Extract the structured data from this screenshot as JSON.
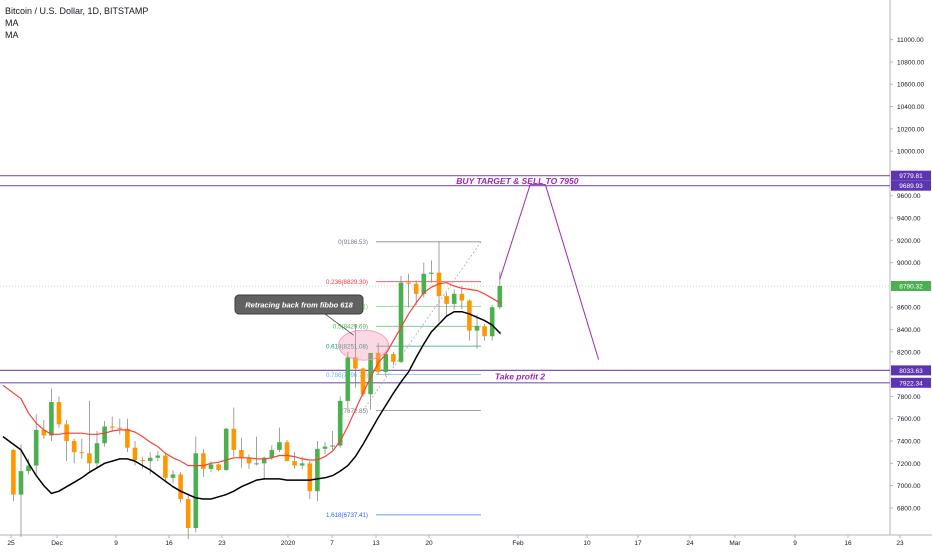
{
  "header": {
    "symbol": "Bitcoin / U.S. Dollar, 1D, BITSTAMP",
    "indicators": [
      "MA",
      "MA"
    ]
  },
  "colors": {
    "up": "#4caf50",
    "down": "#ff9800",
    "ma_fast": "#f44336",
    "ma_slow": "#000000",
    "hline": "#7e57c2",
    "projection": "#9c27b0",
    "annotation_text": "#9c27b0",
    "price_tag": "#5e35b1",
    "last_price_tag": "#4caf50"
  },
  "chart_data": {
    "type": "candlestick",
    "title": "Bitcoin / U.S. Dollar, 1D, BITSTAMP",
    "x_tick_labels": [
      "25",
      "Dec",
      "9",
      "16",
      "23",
      "2020",
      "7",
      "13",
      "20",
      "Feb",
      "10",
      "17",
      "24",
      "Mar",
      "9",
      "16",
      "23"
    ],
    "y_tick_labels": [
      "11000.00",
      "10800.00",
      "10600.00",
      "10400.00",
      "10200.00",
      "10000.00",
      "9600.00",
      "9400.00",
      "9200.00",
      "9000.00",
      "8600.00",
      "8400.00",
      "8200.00",
      "7800.00",
      "7600.00",
      "7400.00",
      "7200.00",
      "7000.00",
      "6800.00"
    ],
    "ylim": [
      6620,
      11070
    ],
    "grid": false,
    "legend": "top-left",
    "candles": [
      {
        "date": "2019-11-24",
        "o": 7320,
        "h": 7330,
        "l": 6860,
        "c": 6920
      },
      {
        "date": "2019-11-25",
        "o": 6920,
        "h": 7370,
        "l": 6540,
        "c": 7130
      },
      {
        "date": "2019-11-26",
        "o": 7130,
        "h": 7240,
        "l": 7100,
        "c": 7180
      },
      {
        "date": "2019-11-27",
        "o": 7180,
        "h": 7640,
        "l": 7090,
        "c": 7500
      },
      {
        "date": "2019-11-28",
        "o": 7500,
        "h": 7590,
        "l": 7420,
        "c": 7450
      },
      {
        "date": "2019-11-29",
        "o": 7450,
        "h": 7870,
        "l": 7400,
        "c": 7750
      },
      {
        "date": "2019-11-30",
        "o": 7750,
        "h": 7800,
        "l": 7520,
        "c": 7550
      },
      {
        "date": "2019-12-01",
        "o": 7550,
        "h": 7590,
        "l": 7220,
        "c": 7400
      },
      {
        "date": "2019-12-02",
        "o": 7400,
        "h": 7420,
        "l": 7200,
        "c": 7300
      },
      {
        "date": "2019-12-03",
        "o": 7300,
        "h": 7420,
        "l": 7240,
        "c": 7290
      },
      {
        "date": "2019-12-04",
        "o": 7290,
        "h": 7760,
        "l": 7130,
        "c": 7200
      },
      {
        "date": "2019-12-05",
        "o": 7200,
        "h": 7490,
        "l": 7160,
        "c": 7380
      },
      {
        "date": "2019-12-06",
        "o": 7380,
        "h": 7580,
        "l": 7350,
        "c": 7530
      },
      {
        "date": "2019-12-07",
        "o": 7530,
        "h": 7620,
        "l": 7490,
        "c": 7520
      },
      {
        "date": "2019-12-08",
        "o": 7520,
        "h": 7600,
        "l": 7460,
        "c": 7510
      },
      {
        "date": "2019-12-09",
        "o": 7510,
        "h": 7600,
        "l": 7300,
        "c": 7340
      },
      {
        "date": "2019-12-10",
        "o": 7340,
        "h": 7400,
        "l": 7180,
        "c": 7230
      },
      {
        "date": "2019-12-11",
        "o": 7230,
        "h": 7260,
        "l": 7150,
        "c": 7220
      },
      {
        "date": "2019-12-12",
        "o": 7220,
        "h": 7300,
        "l": 7100,
        "c": 7250
      },
      {
        "date": "2019-12-13",
        "o": 7250,
        "h": 7310,
        "l": 7220,
        "c": 7270
      },
      {
        "date": "2019-12-14",
        "o": 7270,
        "h": 7290,
        "l": 7030,
        "c": 7070
      },
      {
        "date": "2019-12-15",
        "o": 7070,
        "h": 7140,
        "l": 7020,
        "c": 7100
      },
      {
        "date": "2019-12-16",
        "o": 7100,
        "h": 7120,
        "l": 6850,
        "c": 6880
      },
      {
        "date": "2019-12-17",
        "o": 6880,
        "h": 6930,
        "l": 6520,
        "c": 6620
      },
      {
        "date": "2019-12-18",
        "o": 6620,
        "h": 7440,
        "l": 6580,
        "c": 7290
      },
      {
        "date": "2019-12-19",
        "o": 7290,
        "h": 7330,
        "l": 7080,
        "c": 7150
      },
      {
        "date": "2019-12-20",
        "o": 7150,
        "h": 7220,
        "l": 7120,
        "c": 7190
      },
      {
        "date": "2019-12-21",
        "o": 7190,
        "h": 7200,
        "l": 7130,
        "c": 7140
      },
      {
        "date": "2019-12-22",
        "o": 7140,
        "h": 7520,
        "l": 7130,
        "c": 7510
      },
      {
        "date": "2019-12-23",
        "o": 7510,
        "h": 7700,
        "l": 7260,
        "c": 7320
      },
      {
        "date": "2019-12-24",
        "o": 7320,
        "h": 7430,
        "l": 7160,
        "c": 7250
      },
      {
        "date": "2019-12-25",
        "o": 7250,
        "h": 7280,
        "l": 7150,
        "c": 7200
      },
      {
        "date": "2019-12-26",
        "o": 7200,
        "h": 7440,
        "l": 7180,
        "c": 7200
      },
      {
        "date": "2019-12-27",
        "o": 7200,
        "h": 7260,
        "l": 7050,
        "c": 7250
      },
      {
        "date": "2019-12-28",
        "o": 7250,
        "h": 7360,
        "l": 7230,
        "c": 7320
      },
      {
        "date": "2019-12-29",
        "o": 7320,
        "h": 7520,
        "l": 7300,
        "c": 7390
      },
      {
        "date": "2019-12-30",
        "o": 7390,
        "h": 7410,
        "l": 7250,
        "c": 7220
      },
      {
        "date": "2019-12-31",
        "o": 7220,
        "h": 7300,
        "l": 7150,
        "c": 7180
      },
      {
        "date": "2020-01-01",
        "o": 7180,
        "h": 7260,
        "l": 7150,
        "c": 7200
      },
      {
        "date": "2020-01-02",
        "o": 7200,
        "h": 7220,
        "l": 6880,
        "c": 6950
      },
      {
        "date": "2020-01-03",
        "o": 6950,
        "h": 7400,
        "l": 6860,
        "c": 7330
      },
      {
        "date": "2020-01-04",
        "o": 7330,
        "h": 7390,
        "l": 7280,
        "c": 7350
      },
      {
        "date": "2020-01-05",
        "o": 7350,
        "h": 7490,
        "l": 7320,
        "c": 7360
      },
      {
        "date": "2020-01-06",
        "o": 7360,
        "h": 7800,
        "l": 7340,
        "c": 7760
      },
      {
        "date": "2020-01-07",
        "o": 7760,
        "h": 8200,
        "l": 7690,
        "c": 8150
      },
      {
        "date": "2020-01-08",
        "o": 8150,
        "h": 8450,
        "l": 7880,
        "c": 8050
      },
      {
        "date": "2020-01-09",
        "o": 8050,
        "h": 8060,
        "l": 7800,
        "c": 7820
      },
      {
        "date": "2020-01-10",
        "o": 7820,
        "h": 8180,
        "l": 7680,
        "c": 8190
      },
      {
        "date": "2020-01-11",
        "o": 8190,
        "h": 8280,
        "l": 8000,
        "c": 8020
      },
      {
        "date": "2020-01-12",
        "o": 8020,
        "h": 8200,
        "l": 7980,
        "c": 8180
      },
      {
        "date": "2020-01-13",
        "o": 8180,
        "h": 8200,
        "l": 8080,
        "c": 8110
      },
      {
        "date": "2020-01-14",
        "o": 8110,
        "h": 8880,
        "l": 8100,
        "c": 8820
      },
      {
        "date": "2020-01-15",
        "o": 8820,
        "h": 8900,
        "l": 8600,
        "c": 8810
      },
      {
        "date": "2020-01-16",
        "o": 8810,
        "h": 8840,
        "l": 8620,
        "c": 8720
      },
      {
        "date": "2020-01-17",
        "o": 8720,
        "h": 9000,
        "l": 8690,
        "c": 8900
      },
      {
        "date": "2020-01-18",
        "o": 8900,
        "h": 9020,
        "l": 8820,
        "c": 8910
      },
      {
        "date": "2020-01-19",
        "o": 8910,
        "h": 9190,
        "l": 8470,
        "c": 8700
      },
      {
        "date": "2020-01-20",
        "o": 8700,
        "h": 8730,
        "l": 8520,
        "c": 8630
      },
      {
        "date": "2020-01-21",
        "o": 8630,
        "h": 8760,
        "l": 8580,
        "c": 8720
      },
      {
        "date": "2020-01-22",
        "o": 8720,
        "h": 8790,
        "l": 8580,
        "c": 8660
      },
      {
        "date": "2020-01-23",
        "o": 8660,
        "h": 8670,
        "l": 8300,
        "c": 8390
      },
      {
        "date": "2020-01-24",
        "o": 8390,
        "h": 8530,
        "l": 8230,
        "c": 8430
      },
      {
        "date": "2020-01-25",
        "o": 8430,
        "h": 8450,
        "l": 8300,
        "c": 8340
      },
      {
        "date": "2020-01-26",
        "o": 8340,
        "h": 8620,
        "l": 8300,
        "c": 8600
      },
      {
        "date": "2020-01-27",
        "o": 8600,
        "h": 8920,
        "l": 8580,
        "c": 8790
      }
    ],
    "ma_fast_values": [
      7900,
      7780,
      7650,
      7560,
      7500,
      7460,
      7460,
      7470,
      7470,
      7470,
      7460,
      7460,
      7470,
      7490,
      7500,
      7500,
      7480,
      7440,
      7390,
      7350,
      7290,
      7250,
      7220,
      7180,
      7180,
      7180,
      7200,
      7210,
      7230,
      7250,
      7250,
      7250,
      7240,
      7240,
      7250,
      7270,
      7270,
      7260,
      7240,
      7230,
      7230,
      7260,
      7310,
      7400,
      7530,
      7680,
      7830,
      7970,
      8100,
      8180,
      8300,
      8420,
      8540,
      8640,
      8730,
      8780,
      8810,
      8820,
      8790,
      8770,
      8760,
      8750,
      8720,
      8680,
      8640,
      8650
    ],
    "ma_slow_values": [
      7440,
      7320,
      7200,
      7090,
      7000,
      6930,
      6950,
      6990,
      7030,
      7070,
      7120,
      7160,
      7200,
      7220,
      7240,
      7240,
      7220,
      7180,
      7140,
      7090,
      7040,
      6990,
      6950,
      6920,
      6890,
      6880,
      6880,
      6900,
      6920,
      6950,
      6990,
      7020,
      7050,
      7060,
      7060,
      7060,
      7050,
      7050,
      7050,
      7050,
      7060,
      7070,
      7090,
      7130,
      7180,
      7260,
      7370,
      7490,
      7610,
      7720,
      7830,
      7930,
      8020,
      8150,
      8270,
      8380,
      8450,
      8520,
      8560,
      8560,
      8540,
      8510,
      8480,
      8440,
      8370,
      8380
    ],
    "fibonacci": [
      {
        "label": "0(9186.53)",
        "value": 9186.53
      },
      {
        "label": "0.236(8829.30)",
        "value": 8829.3
      },
      {
        "label": "0.382(8608.31)",
        "value": 8608.31
      },
      {
        "label": "0.5(8429.69)",
        "value": 8429.69
      },
      {
        "label": "0.618(8251.08)",
        "value": 8251.08
      },
      {
        "label": "0.786(7996.76)",
        "value": 7996.76
      },
      {
        "label": "1(7672.85)",
        "value": 7672.85
      },
      {
        "label": "1.618(6737.41)",
        "value": 6737.41
      }
    ],
    "horizontal_levels": [
      {
        "price": 9779.81,
        "label": "9779.81"
      },
      {
        "price": 9689.93,
        "label": "9689.93"
      },
      {
        "price": 8033.63,
        "label": "8033.63"
      },
      {
        "price": 7922.34,
        "label": "7922.34"
      }
    ],
    "last_price": {
      "price": 8790.32,
      "label": "8790.32"
    },
    "projection": [
      {
        "date": "2020-01-27",
        "price": 8850
      },
      {
        "date": "2020-01-31",
        "price": 9700
      },
      {
        "date": "2020-02-02",
        "price": 9700
      },
      {
        "date": "2020-02-09",
        "price": 8130
      }
    ],
    "annotations": [
      {
        "text": "BUY TARGET & SELL TO 7950",
        "date": "2020-01-28",
        "price": 9730
      },
      {
        "text": "Take profit 2",
        "date": "2020-01-29",
        "price": 7978
      }
    ],
    "callout": {
      "text": "Retracing back from fibbo 618",
      "date": "2020-01-10",
      "price": 8251
    }
  }
}
